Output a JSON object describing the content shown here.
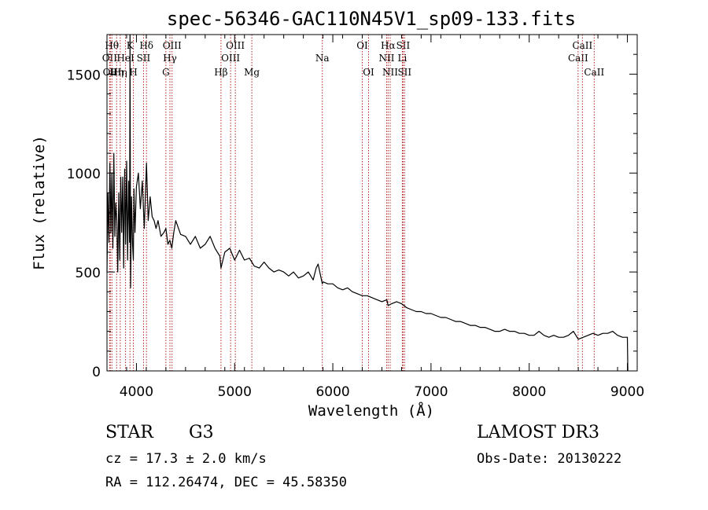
{
  "chart_data": {
    "type": "line",
    "title": "spec-56346-GAC110N45V1_sp09-133.fits",
    "xlabel": "Wavelength (Å)",
    "ylabel": "Flux (relative)",
    "xlim": [
      3700,
      9100
    ],
    "ylim": [
      0,
      1700
    ],
    "xticks": [
      4000,
      5000,
      6000,
      7000,
      8000,
      9000
    ],
    "xtick_labels": [
      "4000",
      "5000",
      "6000",
      "7000",
      "8000",
      "9000"
    ],
    "yticks": [
      0,
      500,
      1000,
      1500
    ],
    "ytick_labels": [
      "0",
      "500",
      "1000",
      "1500"
    ],
    "grid": false,
    "series": [
      {
        "name": "flux",
        "x": [
          3700,
          3710,
          3720,
          3730,
          3740,
          3750,
          3760,
          3770,
          3780,
          3790,
          3800,
          3810,
          3820,
          3830,
          3840,
          3850,
          3860,
          3870,
          3880,
          3890,
          3900,
          3910,
          3920,
          3930,
          3935,
          3940,
          3950,
          3960,
          3968,
          3975,
          3985,
          4000,
          4020,
          4040,
          4060,
          4080,
          4102,
          4120,
          4140,
          4160,
          4180,
          4200,
          4220,
          4250,
          4280,
          4300,
          4320,
          4340,
          4360,
          4380,
          4400,
          4450,
          4500,
          4550,
          4600,
          4650,
          4700,
          4750,
          4800,
          4850,
          4861,
          4900,
          4950,
          5000,
          5050,
          5100,
          5150,
          5200,
          5250,
          5300,
          5350,
          5400,
          5450,
          5500,
          5550,
          5600,
          5650,
          5700,
          5750,
          5800,
          5830,
          5850,
          5893,
          5900,
          5950,
          6000,
          6050,
          6100,
          6150,
          6200,
          6250,
          6300,
          6350,
          6400,
          6450,
          6500,
          6550,
          6563,
          6600,
          6650,
          6700,
          6750,
          6800,
          6850,
          6900,
          6950,
          7000,
          7050,
          7100,
          7150,
          7200,
          7250,
          7300,
          7350,
          7400,
          7450,
          7500,
          7550,
          7600,
          7650,
          7700,
          7750,
          7800,
          7850,
          7900,
          7950,
          8000,
          8050,
          8100,
          8150,
          8200,
          8250,
          8300,
          8350,
          8400,
          8450,
          8500,
          8550,
          8600,
          8650,
          8700,
          8750,
          8800,
          8850,
          8900,
          8950,
          9000,
          9005
        ],
        "values": [
          500,
          900,
          650,
          1050,
          700,
          1000,
          620,
          1100,
          680,
          850,
          760,
          500,
          900,
          560,
          980,
          700,
          980,
          520,
          1020,
          640,
          1060,
          560,
          960,
          650,
          1700,
          420,
          880,
          640,
          560,
          920,
          700,
          930,
          1000,
          820,
          960,
          720,
          1050,
          760,
          880,
          780,
          760,
          720,
          760,
          680,
          700,
          720,
          640,
          660,
          620,
          700,
          760,
          690,
          680,
          640,
          680,
          620,
          640,
          680,
          620,
          580,
          520,
          600,
          620,
          560,
          610,
          560,
          570,
          530,
          520,
          550,
          520,
          500,
          510,
          500,
          480,
          500,
          470,
          480,
          500,
          460,
          520,
          540,
          440,
          450,
          440,
          440,
          420,
          410,
          420,
          400,
          390,
          380,
          380,
          370,
          360,
          350,
          360,
          330,
          340,
          350,
          340,
          320,
          310,
          300,
          300,
          290,
          290,
          280,
          270,
          270,
          260,
          250,
          250,
          240,
          230,
          230,
          220,
          220,
          210,
          200,
          200,
          210,
          200,
          200,
          190,
          190,
          180,
          180,
          200,
          180,
          170,
          180,
          170,
          170,
          180,
          200,
          160,
          170,
          180,
          190,
          180,
          190,
          190,
          200,
          180,
          170,
          170,
          0
        ]
      }
    ],
    "line_markers": [
      {
        "wavelength": 3727,
        "labels": [
          "OII"
        ],
        "row": 2
      },
      {
        "wavelength": 3734,
        "labels": [
          "OII"
        ],
        "row": 3
      },
      {
        "wavelength": 3750,
        "labels": [
          "Hθ"
        ],
        "row": 1
      },
      {
        "wavelength": 3798,
        "labels": [
          "Hη"
        ],
        "row": 3
      },
      {
        "wavelength": 3835,
        "labels": [
          "Hη"
        ],
        "row": 3
      },
      {
        "wavelength": 3889,
        "labels": [
          "HeI"
        ],
        "row": 2
      },
      {
        "wavelength": 3934,
        "labels": [
          "K"
        ],
        "row": 1
      },
      {
        "wavelength": 3969,
        "labels": [
          "H"
        ],
        "row": 3
      },
      {
        "wavelength": 4072,
        "labels": [
          "SII"
        ],
        "row": 2
      },
      {
        "wavelength": 4102,
        "labels": [
          "Hδ"
        ],
        "row": 1
      },
      {
        "wavelength": 4300,
        "labels": [
          "G"
        ],
        "row": 3
      },
      {
        "wavelength": 4341,
        "labels": [
          "Hγ"
        ],
        "row": 2
      },
      {
        "wavelength": 4363,
        "labels": [
          "OIII"
        ],
        "row": 1
      },
      {
        "wavelength": 4861,
        "labels": [
          "Hβ"
        ],
        "row": 3
      },
      {
        "wavelength": 4959,
        "labels": [
          "OIII"
        ],
        "row": 2
      },
      {
        "wavelength": 5007,
        "labels": [
          "OIII"
        ],
        "row": 1
      },
      {
        "wavelength": 5175,
        "labels": [
          "Mg"
        ],
        "row": 3
      },
      {
        "wavelength": 5893,
        "labels": [
          "Na"
        ],
        "row": 2
      },
      {
        "wavelength": 6300,
        "labels": [
          "OI"
        ],
        "row": 1
      },
      {
        "wavelength": 6364,
        "labels": [
          "OI"
        ],
        "row": 3
      },
      {
        "wavelength": 6548,
        "labels": [
          "NII"
        ],
        "row": 2
      },
      {
        "wavelength": 6563,
        "labels": [
          "Hα"
        ],
        "row": 1
      },
      {
        "wavelength": 6584,
        "labels": [
          "NII"
        ],
        "row": 3
      },
      {
        "wavelength": 6708,
        "labels": [
          "Li"
        ],
        "row": 2
      },
      {
        "wavelength": 6716,
        "labels": [
          "SII"
        ],
        "row": 1
      },
      {
        "wavelength": 6731,
        "labels": [
          "SII"
        ],
        "row": 3
      },
      {
        "wavelength": 8498,
        "labels": [
          "CaII"
        ],
        "row": 2
      },
      {
        "wavelength": 8542,
        "labels": [
          "CaII"
        ],
        "row": 1
      },
      {
        "wavelength": 8662,
        "labels": [
          "CaII"
        ],
        "row": 3
      }
    ]
  },
  "info": {
    "object_class": "STAR",
    "subclass": "G3",
    "survey": "LAMOST DR3",
    "redshift": "cz = 17.3 ± 2.0 km/s",
    "obs_date": "Obs-Date: 20130222",
    "coords": "RA = 112.26474, DEC =  45.58350"
  },
  "colors": {
    "spectrum": "#000000",
    "line_markers": "#b22222",
    "axes": "#000000",
    "background": "#ffffff"
  }
}
